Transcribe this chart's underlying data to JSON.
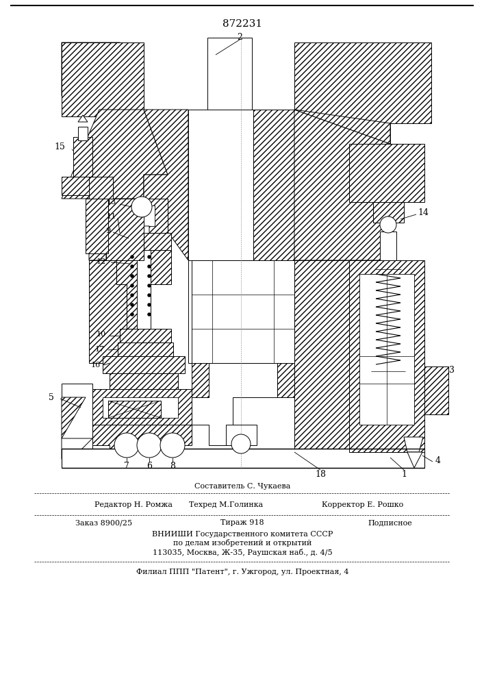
{
  "patent_number": "872231",
  "bg": "#ffffff",
  "lc": "#000000",
  "page_width": 7.07,
  "page_height": 10.0,
  "footer": {
    "sestavitel": "Составитель С. Чукаева",
    "redaktor": "Редактор Н. Ромжа",
    "tehred": "Техред М.Голинка",
    "korrektor": "Корректор Е. Рошко",
    "zakaz": "Заказ 8900/25",
    "tirazh": "Тираж 918",
    "podpisnoe": "Подписное",
    "vniishi": "ВНИИШИ Государственного комитета СССР",
    "po_delam": "по делам изобретений и открытий",
    "address": "113035, Москва, Ж-35, Раушская наб., д. 4/5",
    "filial": "Филиал ППП \"Патент\", г. Ужгород, ул. Проектная, 4"
  }
}
